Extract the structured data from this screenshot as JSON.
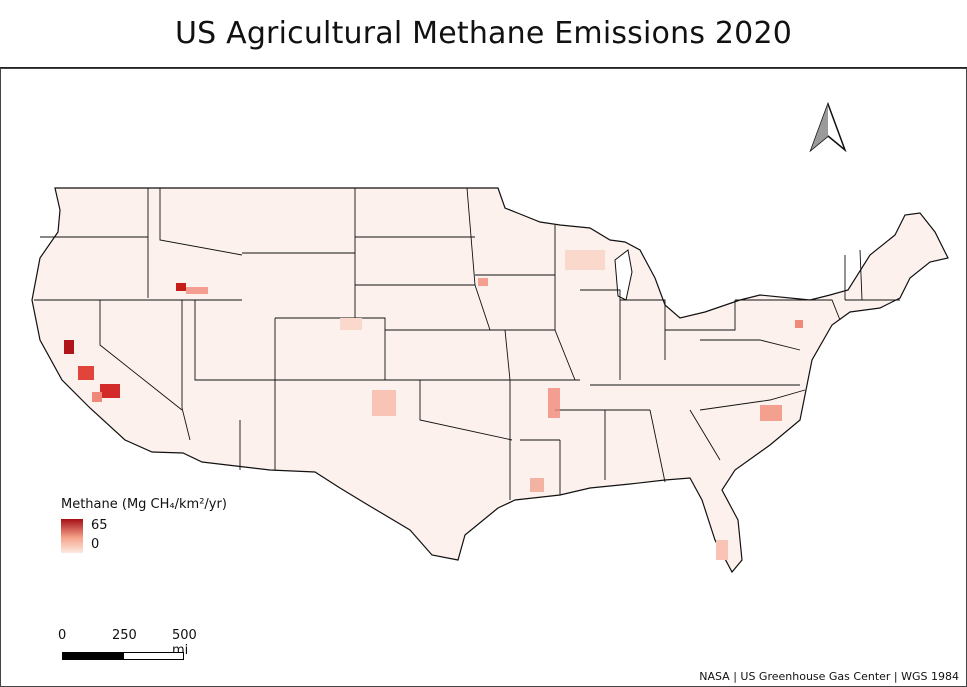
{
  "title": "US Agricultural Methane Emissions 2020",
  "legend": {
    "title": "Methane (Mg CH₄/km²/yr)",
    "max_label": "65",
    "min_label": "0",
    "color_high": "#a50f15",
    "color_low": "#fde9e1"
  },
  "scale_bar": {
    "labels": [
      "0",
      "250",
      "500 mi"
    ]
  },
  "credit": "NASA | US Greenhouse Gas Center | WGS 1984",
  "colors": {
    "land_fill": "#fdf1ed",
    "border": "#111111",
    "hotspot": "#d7301f"
  },
  "icons": [
    "north-arrow-icon"
  ]
}
